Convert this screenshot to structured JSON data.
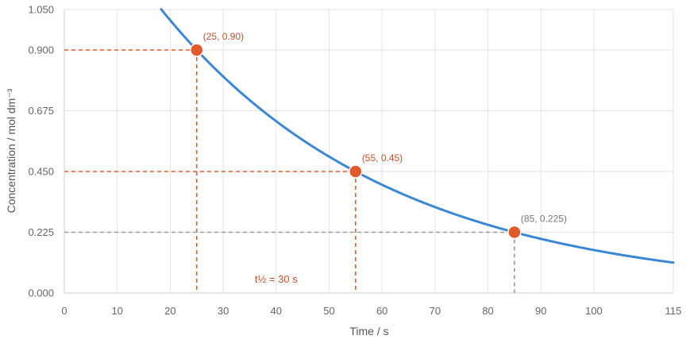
{
  "chart_data": {
    "type": "line",
    "title": "",
    "xlabel": "Time / s",
    "ylabel": "Concentration / mol dm⁻³",
    "xlim": [
      0,
      115
    ],
    "ylim": [
      0,
      1.05
    ],
    "x_ticks": [
      0,
      10,
      20,
      30,
      40,
      50,
      60,
      70,
      80,
      90,
      100,
      115
    ],
    "x_tick_labels": [
      "0",
      "10",
      "20",
      "30",
      "40",
      "50",
      "60",
      "70",
      "80",
      "90",
      "100",
      "115"
    ],
    "y_ticks": [
      0,
      0.225,
      0.45,
      0.675,
      0.9,
      1.05
    ],
    "y_tick_labels": [
      "0.000",
      "0.225",
      "0.450",
      "0.675",
      "0.900",
      "1.050"
    ],
    "grid": true,
    "curve": {
      "name": "exponential decay",
      "model": "C = C0 * 0.5^((t - t0) / half_life)",
      "C0": 0.9,
      "t0": 25,
      "half_life": 30,
      "t_start": 18.3,
      "t_end": 115,
      "color": "#3b87d6"
    },
    "points": [
      {
        "x": 25,
        "y": 0.9,
        "label": "(25, 0.90)",
        "color": "#e05a2b",
        "label_color": "#c9502a",
        "guide_color": "#e05a2b"
      },
      {
        "x": 55,
        "y": 0.45,
        "label": "(55, 0.45)",
        "color": "#e05a2b",
        "label_color": "#c9502a",
        "guide_color": "#e05a2b"
      },
      {
        "x": 85,
        "y": 0.225,
        "label": "(85, 0.225)",
        "color": "#e05a2b",
        "label_color": "#777777",
        "guide_color": "#999999"
      }
    ],
    "annotation": {
      "text": "t½ = 30 s",
      "x": 40,
      "y": 0.05,
      "color": "#c9502a"
    }
  }
}
